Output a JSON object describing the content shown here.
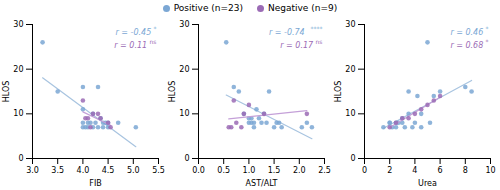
{
  "chart_data": [
    {
      "type": "scatter",
      "xlabel": "FIB",
      "ylabel": "HLOS",
      "legend": "upper center",
      "xlim": [
        3.0,
        5.5
      ],
      "xticks": [
        {
          "value": 3.0,
          "label": "3.0"
        },
        3.5,
        {
          "value": 4.0,
          "label": "4.0"
        },
        4.5,
        {
          "value": 5.0,
          "label": "5.0"
        },
        5.5
      ],
      "ylim": [
        0,
        30
      ],
      "yticks": [
        0,
        10,
        20,
        30
      ],
      "annotations": [
        {
          "text": "r = -0.45",
          "superscript": "*",
          "color": "#7ba7d4"
        },
        {
          "text": "r = 0.11",
          "superscript": "ns",
          "color": "#9b6bb5"
        }
      ],
      "series": [
        {
          "name": "Positive (n=23)",
          "color": "#7ba7d4",
          "marker": "circle",
          "regression": {
            "type": "line",
            "color": "#a8c4e0"
          },
          "x": [
            3.2,
            3.5,
            4.0,
            4.0,
            4.0,
            4.0,
            4.05,
            4.1,
            4.1,
            4.15,
            4.2,
            4.2,
            4.25,
            4.3,
            4.3,
            4.35,
            4.4,
            4.4,
            4.45,
            4.5,
            4.5,
            4.7,
            5.05
          ],
          "values": [
            26,
            15,
            7,
            8,
            16,
            11,
            7,
            8,
            7,
            8,
            7,
            10,
            8,
            16,
            7,
            9,
            7,
            8,
            8,
            7,
            8,
            8,
            7
          ]
        },
        {
          "name": "Negative (n=9)",
          "color": "#9b6bb5",
          "marker": "circle",
          "regression": {
            "type": "line",
            "color": "#c4a0d8"
          },
          "x": [
            4.0,
            4.05,
            4.1,
            4.15,
            4.2,
            4.3,
            4.35,
            4.5,
            4.55
          ],
          "values": [
            13,
            9,
            9,
            7,
            10,
            10,
            9,
            8,
            7
          ]
        }
      ]
    },
    {
      "type": "scatter",
      "xlabel": "AST/ALT",
      "ylabel": "HLOS",
      "xlim": [
        0.0,
        2.5
      ],
      "xticks": [
        {
          "value": 0.0,
          "label": "0.0"
        },
        0.5,
        {
          "value": 1.0,
          "label": "1.0"
        },
        1.5,
        {
          "value": 2.0,
          "label": "2.0"
        },
        2.5
      ],
      "ylim": [
        0,
        30
      ],
      "yticks": [
        0,
        10,
        20,
        30
      ],
      "annotations": [
        {
          "text": "r = -0.74",
          "superscript": "****",
          "color": "#7ba7d4"
        },
        {
          "text": "r = 0.17",
          "superscript": "ns",
          "color": "#9b6bb5"
        }
      ],
      "series": [
        {
          "name": "Positive (n=23)",
          "color": "#7ba7d4",
          "marker": "circle",
          "regression": {
            "type": "line",
            "color": "#a8c4e0"
          },
          "x": [
            0.55,
            0.7,
            0.8,
            0.9,
            1.0,
            1.0,
            1.05,
            1.05,
            1.1,
            1.1,
            1.15,
            1.2,
            1.25,
            1.3,
            1.35,
            1.4,
            1.5,
            1.55,
            1.6,
            1.65,
            2.05,
            2.15,
            2.25
          ],
          "values": [
            26,
            16,
            15,
            10,
            9,
            8,
            8,
            9,
            7,
            8,
            11,
            9,
            8,
            10,
            8,
            15,
            7,
            8,
            8,
            7,
            7,
            8,
            7
          ]
        },
        {
          "name": "Negative (n=9)",
          "color": "#9b6bb5",
          "marker": "circle",
          "regression": {
            "type": "line",
            "color": "#c4a0d8"
          },
          "x": [
            0.6,
            0.65,
            0.7,
            0.75,
            0.85,
            0.9,
            1.0,
            1.3,
            2.15
          ],
          "values": [
            7,
            7,
            13,
            8,
            7,
            10,
            12,
            10,
            10
          ]
        }
      ]
    },
    {
      "type": "scatter",
      "xlabel": "Urea",
      "ylabel": "HLOS",
      "xlim": [
        0,
        10
      ],
      "xticks": [
        0,
        2,
        4,
        6,
        8,
        10
      ],
      "ylim": [
        0,
        30
      ],
      "yticks": [
        0,
        10,
        20,
        30
      ],
      "annotations": [
        {
          "text": "r = 0.46",
          "superscript": "*",
          "color": "#7ba7d4"
        },
        {
          "text": "r = 0.68",
          "superscript": "*",
          "color": "#9b6bb5"
        }
      ],
      "series": [
        {
          "name": "Positive (n=23)",
          "color": "#7ba7d4",
          "marker": "circle",
          "regression": {
            "type": "line",
            "color": "#a8c4e0"
          },
          "x": [
            1.5,
            2.0,
            2.0,
            2.2,
            2.5,
            2.5,
            2.7,
            3.0,
            3.0,
            3.2,
            3.5,
            3.5,
            3.8,
            4.0,
            4.2,
            4.5,
            4.5,
            5.0,
            5.2,
            5.5,
            6.0,
            8.0,
            8.5
          ],
          "values": [
            7,
            8,
            8,
            7,
            8,
            7,
            8,
            9,
            8,
            7,
            15,
            10,
            7,
            8,
            14,
            10,
            7,
            26,
            8,
            14,
            15,
            16,
            15
          ]
        },
        {
          "name": "Negative (n=9)",
          "color": "#9b6bb5",
          "marker": "circle",
          "regression": {
            "type": "line",
            "color": "#c4a0d8"
          },
          "x": [
            2.0,
            2.5,
            3.0,
            3.5,
            4.0,
            4.5,
            5.0,
            5.5,
            6.0
          ],
          "values": [
            7,
            8,
            9,
            9,
            10,
            11,
            12,
            13,
            14
          ]
        }
      ]
    }
  ]
}
